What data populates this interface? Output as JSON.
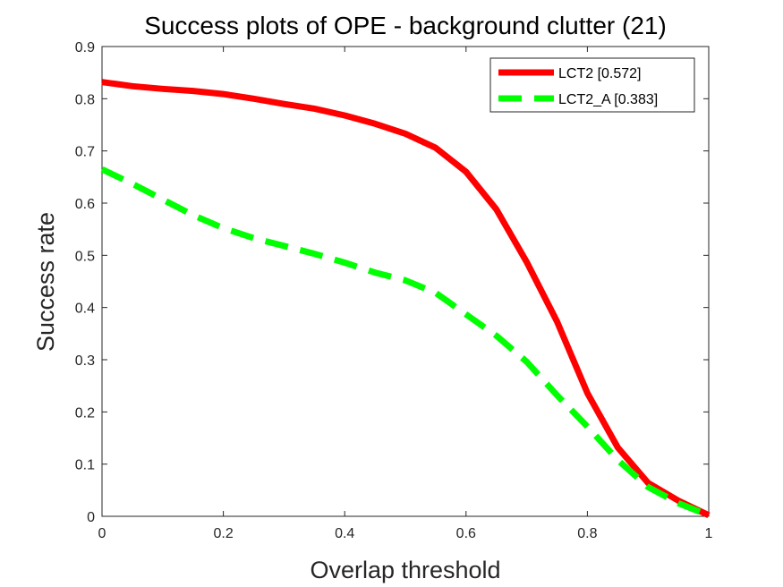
{
  "chart_data": {
    "type": "line",
    "title": "Success plots of OPE - background clutter (21)",
    "xlabel": "Overlap threshold",
    "ylabel": "Success rate",
    "xlim": [
      0,
      1
    ],
    "ylim": [
      0,
      0.9
    ],
    "xticks": [
      "0",
      "0.2",
      "0.4",
      "0.6",
      "0.8",
      "1"
    ],
    "yticks": [
      "0",
      "0.1",
      "0.2",
      "0.3",
      "0.4",
      "0.5",
      "0.6",
      "0.7",
      "0.8",
      "0.9"
    ],
    "grid": false,
    "legend_position": "top-right",
    "x": [
      0,
      0.05,
      0.1,
      0.15,
      0.2,
      0.25,
      0.3,
      0.35,
      0.4,
      0.45,
      0.5,
      0.55,
      0.6,
      0.65,
      0.7,
      0.75,
      0.8,
      0.85,
      0.9,
      0.95,
      1
    ],
    "series": [
      {
        "name": "LCT2 [0.572]",
        "color": "#ff0000",
        "style": "solid",
        "values": [
          0.832,
          0.824,
          0.819,
          0.815,
          0.809,
          0.8,
          0.79,
          0.781,
          0.768,
          0.752,
          0.733,
          0.706,
          0.66,
          0.588,
          0.487,
          0.373,
          0.236,
          0.132,
          0.064,
          0.03,
          0.002
        ]
      },
      {
        "name": "LCT2_A [0.383]",
        "color": "#00ff00",
        "style": "dashed",
        "values": [
          0.665,
          0.637,
          0.607,
          0.577,
          0.552,
          0.533,
          0.518,
          0.503,
          0.486,
          0.467,
          0.452,
          0.428,
          0.387,
          0.346,
          0.296,
          0.232,
          0.172,
          0.108,
          0.056,
          0.025,
          0.002
        ]
      }
    ]
  }
}
